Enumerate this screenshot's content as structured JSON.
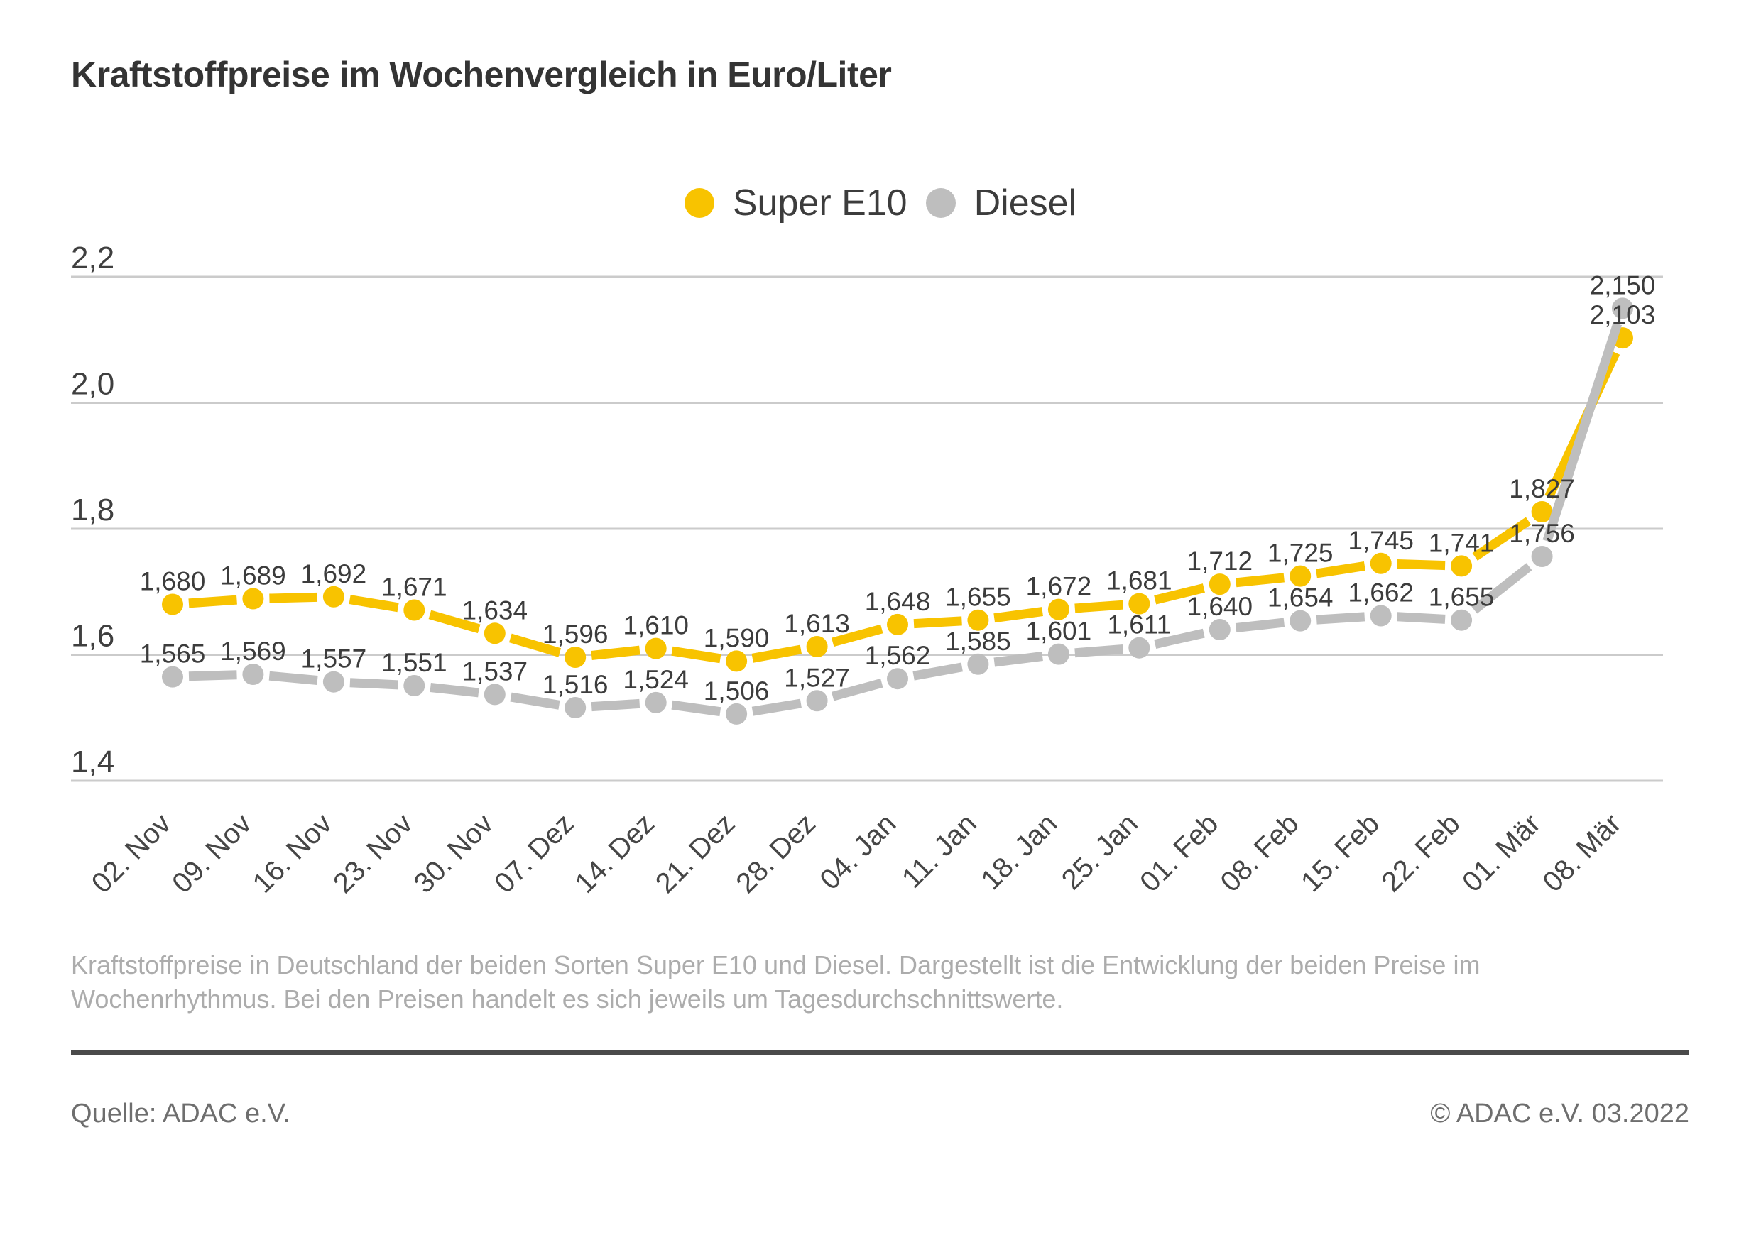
{
  "title": "Kraftstoffpreise im Wochenvergleich in Euro/Liter",
  "description": "Kraftstoffpreise in Deutschland der beiden Sorten Super E10 und Diesel. Dargestellt ist die Entwicklung der beiden Preise im\nWochenrhythmus. Bei den Preisen handelt es sich jeweils um Tagesdurchschnittswerte.",
  "footer": {
    "source": "Quelle: ADAC e.V.",
    "copyright": "© ADAC e.V. 03.2022"
  },
  "chart_data": {
    "type": "line",
    "title": "Kraftstoffpreise im Wochenvergleich in Euro/Liter",
    "unit": "Euro/Liter",
    "categories": [
      "02. Nov",
      "09. Nov",
      "16. Nov",
      "23. Nov",
      "30. Nov",
      "07. Dez",
      "14. Dez",
      "21. Dez",
      "28. Dez",
      "04. Jan",
      "11. Jan",
      "18. Jan",
      "25. Jan",
      "01. Feb",
      "08. Feb",
      "15. Feb",
      "22. Feb",
      "01. Mär",
      "08. Mär"
    ],
    "series": [
      {
        "name": "Super E10",
        "color": "#F8C300",
        "values": [
          1.68,
          1.689,
          1.692,
          1.671,
          1.634,
          1.596,
          1.61,
          1.59,
          1.613,
          1.648,
          1.655,
          1.672,
          1.681,
          1.712,
          1.725,
          1.745,
          1.741,
          1.827,
          2.103
        ]
      },
      {
        "name": "Diesel",
        "color": "#BEBEBE",
        "values": [
          1.565,
          1.569,
          1.557,
          1.551,
          1.537,
          1.516,
          1.524,
          1.506,
          1.527,
          1.562,
          1.585,
          1.601,
          1.611,
          1.64,
          1.654,
          1.662,
          1.655,
          1.756,
          2.15
        ]
      }
    ],
    "yticks": [
      2.2,
      2.0,
      1.8,
      1.6,
      1.4
    ],
    "ylim": [
      1.4,
      2.25
    ],
    "grid": "horizontal",
    "legend_position": "top",
    "decimal_separator": ",",
    "value_decimals": 3,
    "text_color": "#3C3C3C",
    "grid_color": "#CBCBCB"
  }
}
